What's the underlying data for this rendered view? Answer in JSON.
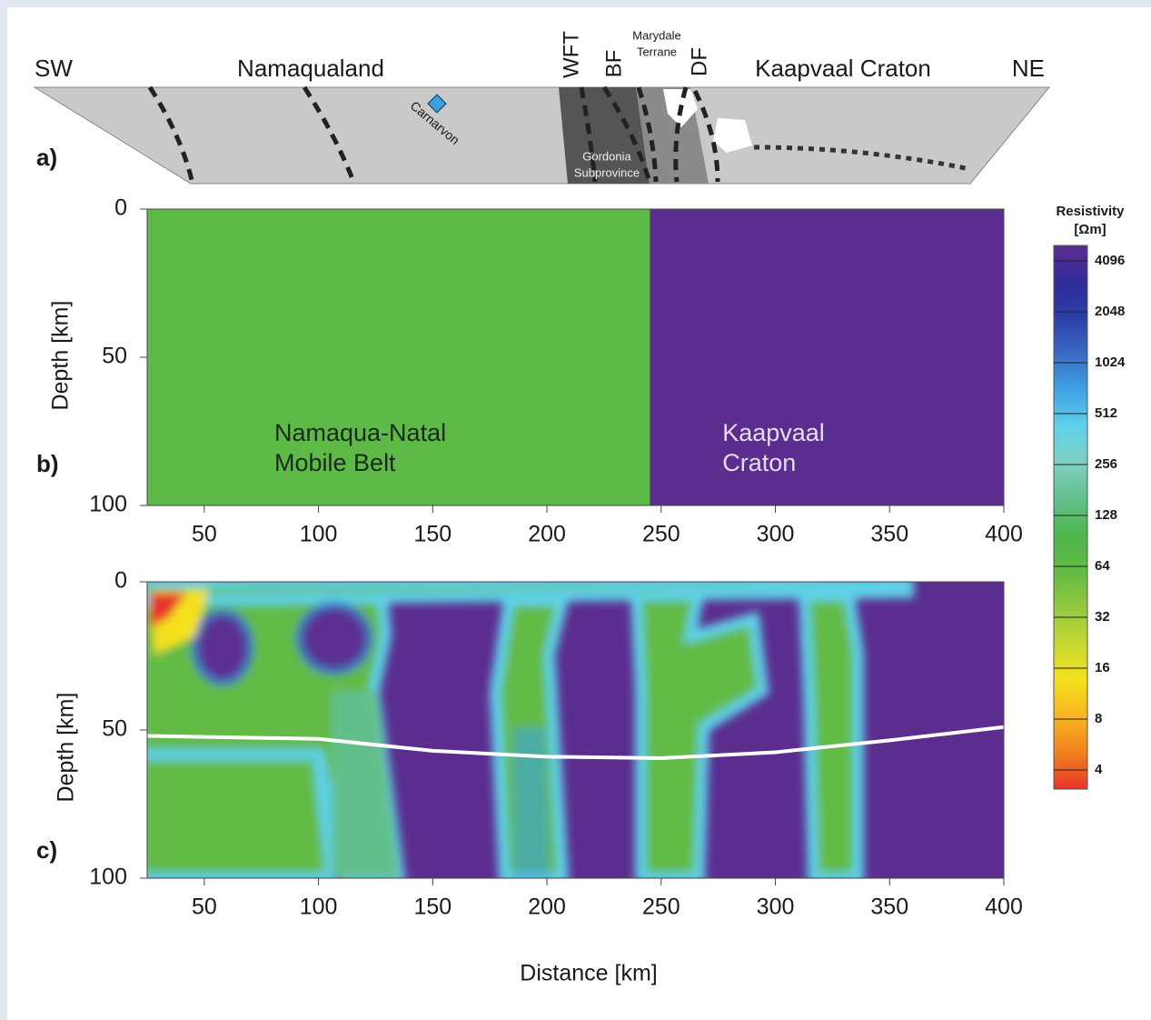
{
  "figure": {
    "panel_a": {
      "label": "a)",
      "sw": "SW",
      "ne": "NE",
      "namaqualand": "Namaqualand",
      "kaapvaal": "Kaapvaal Craton",
      "wft": "WFT",
      "bf": "BF",
      "df": "DF",
      "marydale": [
        "Marydale",
        "Terrane"
      ],
      "carnarvon": "Carnarvon",
      "gordonia": [
        "Gordonia",
        "Subprovince"
      ]
    },
    "panel_b": {
      "type": "regions",
      "label": "b)",
      "ylabel": "Depth [km]",
      "xlim": [
        25,
        400
      ],
      "ylim": [
        0,
        100
      ],
      "xticks": [
        50,
        100,
        150,
        200,
        250,
        300,
        350,
        400
      ],
      "yticks": [
        0,
        50,
        100
      ],
      "regions": [
        {
          "name": [
            "Namaqua-Natal",
            "Mobile Belt"
          ],
          "color": "#5dba47",
          "text_color": "#1a2a1a",
          "x": [
            25,
            245
          ]
        },
        {
          "name": [
            "Kaapvaal",
            "Craton"
          ],
          "color": "#5b2d8f",
          "text_color": "#e6dcf0",
          "x": [
            245,
            400
          ]
        }
      ]
    },
    "panel_c": {
      "type": "resistivity",
      "label": "c)",
      "ylabel": "Depth [km]",
      "xlabel": "Distance [km]",
      "xlim": [
        25,
        400
      ],
      "ylim": [
        0,
        100
      ],
      "xticks": [
        50,
        100,
        150,
        200,
        250,
        300,
        350,
        400
      ],
      "yticks": [
        0,
        50,
        100
      ],
      "moho": {
        "x": [
          25,
          100,
          150,
          200,
          250,
          300,
          350,
          400
        ],
        "y": [
          52,
          53,
          57,
          59,
          59.5,
          57.5,
          53.5,
          49
        ],
        "color": "#ffffff"
      }
    },
    "colorbar": {
      "title": [
        "Resistivity",
        "[Ωm]"
      ],
      "log2": true,
      "lim": [
        4,
        4096
      ],
      "ticks": [
        4096,
        2048,
        1024,
        512,
        256,
        128,
        64,
        32,
        16,
        8,
        4
      ],
      "colors": [
        "#5b2d8f",
        "#2f2c98",
        "#2b3ea8",
        "#3a6cc4",
        "#3fa2e2",
        "#5fd2ea",
        "#7fd0c2",
        "#62bf8c",
        "#4db64a",
        "#62bb44",
        "#93c83e",
        "#c7da32",
        "#f4e11c",
        "#f7b421",
        "#f1821e",
        "#e8332a"
      ]
    }
  }
}
